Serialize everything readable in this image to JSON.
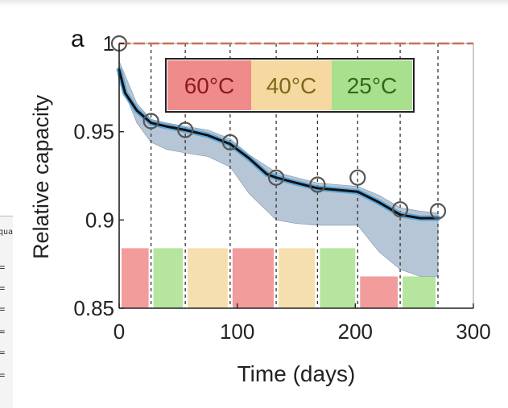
{
  "chart_data": {
    "type": "line",
    "panel_label": "a",
    "xlabel": "Time (days)",
    "ylabel": "Relative capacity",
    "xlim": [
      0,
      300
    ],
    "ylim": [
      0.85,
      1.0
    ],
    "xticks": [
      "0",
      "100",
      "200",
      "300"
    ],
    "yticks": [
      "0.85",
      "0.9",
      "0.95",
      "1"
    ],
    "grid": false,
    "legend": {
      "placement": "top-right",
      "entries": [
        {
          "label": "60°C",
          "color": "#f08b8b",
          "text_color": "#8b1a1a"
        },
        {
          "label": "40°C",
          "color": "#f5d9a0",
          "text_color": "#7a6a1a"
        },
        {
          "label": "25°C",
          "color": "#a8e08e",
          "text_color": "#2d6a1a"
        }
      ]
    },
    "measured_points": {
      "x": [
        0,
        27,
        56,
        94,
        133,
        168,
        202,
        238,
        270
      ],
      "y": [
        1.0,
        0.956,
        0.951,
        0.944,
        0.924,
        0.92,
        0.924,
        0.906,
        0.905
      ]
    },
    "model_line": {
      "x": [
        0,
        5,
        15,
        27,
        40,
        56,
        75,
        94,
        110,
        125,
        133,
        150,
        168,
        185,
        202,
        220,
        238,
        255,
        270
      ],
      "y": [
        0.985,
        0.972,
        0.962,
        0.955,
        0.953,
        0.951,
        0.948,
        0.943,
        0.935,
        0.926,
        0.924,
        0.921,
        0.918,
        0.917,
        0.916,
        0.91,
        0.903,
        0.901,
        0.901
      ]
    },
    "uncertainty_band": {
      "x": [
        0,
        15,
        27,
        40,
        56,
        75,
        94,
        110,
        133,
        150,
        168,
        185,
        202,
        220,
        238,
        255,
        270
      ],
      "upper": [
        0.99,
        0.966,
        0.957,
        0.955,
        0.953,
        0.951,
        0.946,
        0.937,
        0.927,
        0.924,
        0.921,
        0.92,
        0.919,
        0.914,
        0.907,
        0.905,
        0.904
      ],
      "lower": [
        0.98,
        0.955,
        0.944,
        0.94,
        0.938,
        0.936,
        0.93,
        0.915,
        0.9,
        0.898,
        0.897,
        0.897,
        0.897,
        0.882,
        0.872,
        0.868,
        0.868
      ]
    },
    "reference_line": {
      "y": 1.0,
      "color": "#e8542a"
    },
    "segment_boundaries": [
      27,
      56,
      94,
      133,
      168,
      202,
      238,
      270
    ],
    "temperature_blocks": [
      {
        "x": [
          0,
          27
        ],
        "temp": "60°C",
        "top": 0.884
      },
      {
        "x": [
          27,
          56
        ],
        "temp": "25°C",
        "top": 0.884
      },
      {
        "x": [
          56,
          94
        ],
        "temp": "40°C",
        "top": 0.884
      },
      {
        "x": [
          94,
          133
        ],
        "temp": "60°C",
        "top": 0.884
      },
      {
        "x": [
          133,
          168
        ],
        "temp": "40°C",
        "top": 0.884
      },
      {
        "x": [
          168,
          202
        ],
        "temp": "25°C",
        "top": 0.884
      },
      {
        "x": [
          202,
          238
        ],
        "temp": "60°C",
        "top": 0.868
      },
      {
        "x": [
          238,
          270
        ],
        "temp": "25°C",
        "top": 0.868
      }
    ],
    "colors": {
      "band": "#9fb3c8",
      "model": "#111111",
      "model_glow": "#4aa3df",
      "marker": "#555555",
      "axis": "#222222"
    }
  },
  "backdrop": {
    "cut_text": "qua",
    "eq_symbol": "="
  }
}
